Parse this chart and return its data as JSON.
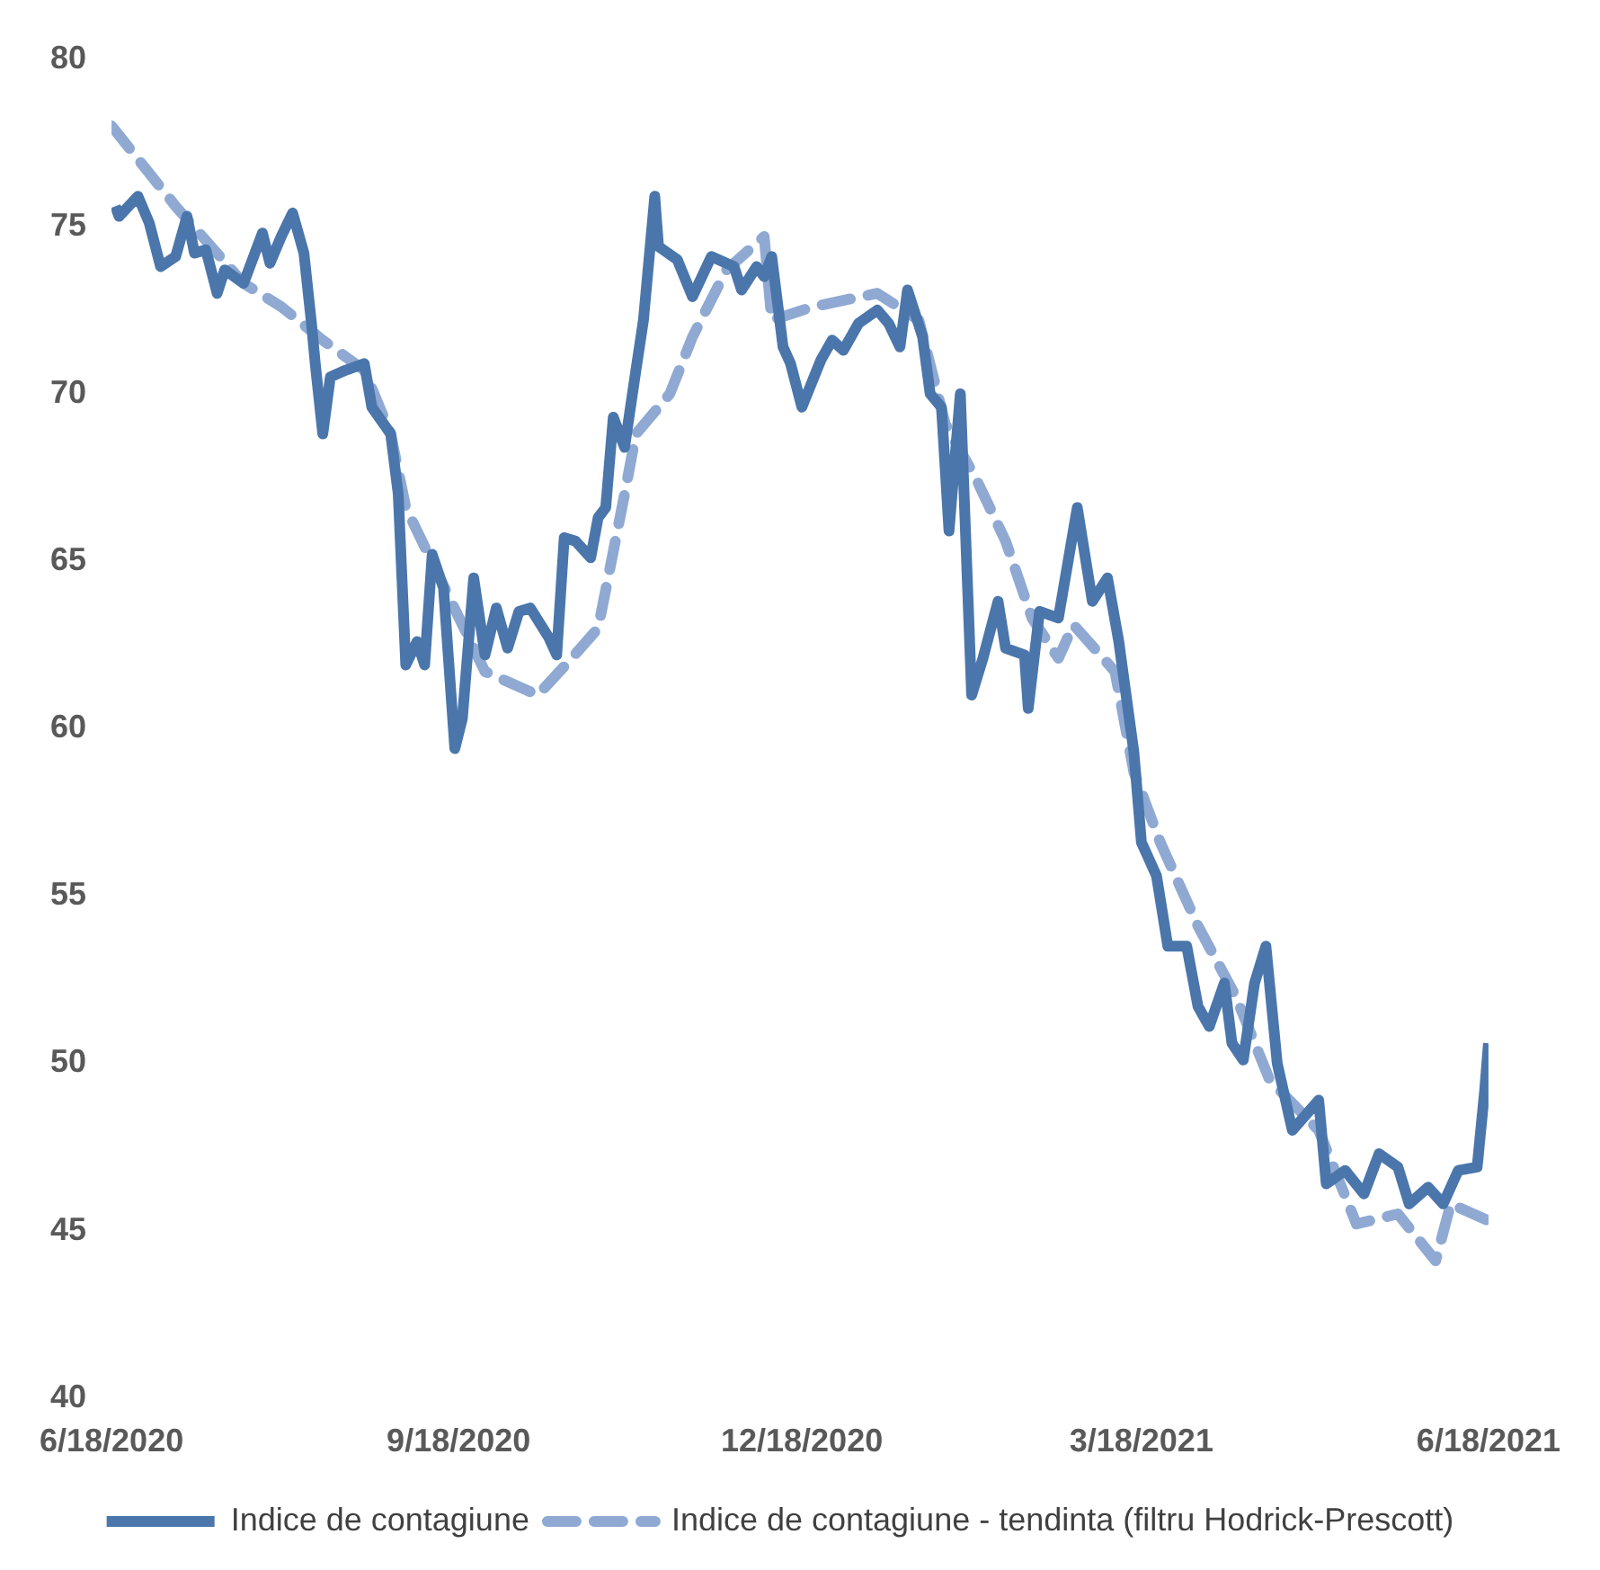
{
  "chart_data": {
    "type": "line",
    "xlim": [
      "2020-06-18",
      "2021-06-18"
    ],
    "xticks": [
      {
        "value": "2020-06-18",
        "label": "6/18/2020"
      },
      {
        "value": "2020-09-18",
        "label": "9/18/2020"
      },
      {
        "value": "2020-12-18",
        "label": "12/18/2020"
      },
      {
        "value": "2021-03-18",
        "label": "3/18/2021"
      },
      {
        "value": "2021-06-18",
        "label": "6/18/2021"
      }
    ],
    "ylim": [
      40,
      80
    ],
    "yticks": [
      40,
      45,
      50,
      55,
      60,
      65,
      70,
      75,
      80
    ],
    "grid": false,
    "legend": "bottom",
    "marker": "none",
    "series": [
      {
        "name": "Indice de contagiune",
        "color": "#4a76ab",
        "line_style": "solid",
        "x": [
          "2020-06-19",
          "2020-06-20",
          "2020-06-25",
          "2020-06-28",
          "2020-07-01",
          "2020-07-05",
          "2020-07-08",
          "2020-07-10",
          "2020-07-13",
          "2020-07-16",
          "2020-07-18",
          "2020-07-23",
          "2020-07-28",
          "2020-07-30",
          "2020-08-02",
          "2020-08-05",
          "2020-08-08",
          "2020-08-10",
          "2020-08-11",
          "2020-08-13",
          "2020-08-15",
          "2020-08-19",
          "2020-08-24",
          "2020-08-26",
          "2020-08-31",
          "2020-09-02",
          "2020-09-04",
          "2020-09-07",
          "2020-09-09",
          "2020-09-11",
          "2020-09-14",
          "2020-09-17",
          "2020-09-19",
          "2020-09-22",
          "2020-09-25",
          "2020-09-28",
          "2020-10-01",
          "2020-10-04",
          "2020-10-07",
          "2020-10-12",
          "2020-10-14",
          "2020-10-16",
          "2020-10-19",
          "2020-10-23",
          "2020-10-25",
          "2020-10-27",
          "2020-10-29",
          "2020-11-01",
          "2020-11-04",
          "2020-11-06",
          "2020-11-09",
          "2020-11-10",
          "2020-11-15",
          "2020-11-19",
          "2020-11-24",
          "2020-11-30",
          "2020-12-02",
          "2020-12-06",
          "2020-12-08",
          "2020-12-10",
          "2020-12-13",
          "2020-12-15",
          "2020-12-18",
          "2020-12-23",
          "2020-12-26",
          "2020-12-29",
          "2021-01-02",
          "2021-01-07",
          "2021-01-10",
          "2021-01-13",
          "2021-01-15",
          "2021-01-19",
          "2021-01-21",
          "2021-01-24",
          "2021-01-26",
          "2021-01-29",
          "2021-02-01",
          "2021-02-04",
          "2021-02-08",
          "2021-02-10",
          "2021-02-15",
          "2021-02-16",
          "2021-02-19",
          "2021-02-24",
          "2021-03-01",
          "2021-03-05",
          "2021-03-09",
          "2021-03-12",
          "2021-03-16",
          "2021-03-18",
          "2021-03-22",
          "2021-03-25",
          "2021-03-30",
          "2021-04-02",
          "2021-04-05",
          "2021-04-09",
          "2021-04-11",
          "2021-04-14",
          "2021-04-17",
          "2021-04-20",
          "2021-04-23",
          "2021-04-27",
          "2021-05-04",
          "2021-05-06",
          "2021-05-11",
          "2021-05-16",
          "2021-05-20",
          "2021-05-25",
          "2021-05-28",
          "2021-06-02",
          "2021-06-06",
          "2021-06-10",
          "2021-06-15",
          "2021-06-17",
          "2021-06-18"
        ],
        "values": [
          75.6,
          75.3,
          75.9,
          75.1,
          73.8,
          74.1,
          75.3,
          74.2,
          74.3,
          73.0,
          73.7,
          73.3,
          74.8,
          73.9,
          74.7,
          75.4,
          74.2,
          72.1,
          70.9,
          68.8,
          70.5,
          70.7,
          70.9,
          69.6,
          68.8,
          67.0,
          61.9,
          62.6,
          61.9,
          65.2,
          64.2,
          59.4,
          60.3,
          64.5,
          62.2,
          63.6,
          62.4,
          63.5,
          63.6,
          62.7,
          62.2,
          65.7,
          65.6,
          65.1,
          66.3,
          66.6,
          69.3,
          68.4,
          70.7,
          72.2,
          75.9,
          74.4,
          74.0,
          72.9,
          74.1,
          73.8,
          73.1,
          73.8,
          73.5,
          74.1,
          71.4,
          70.9,
          69.6,
          71.0,
          71.6,
          71.3,
          72.1,
          72.5,
          72.1,
          71.4,
          73.1,
          71.7,
          70.0,
          69.6,
          65.9,
          70.0,
          61.0,
          62.1,
          63.8,
          62.4,
          62.2,
          60.6,
          63.5,
          63.3,
          66.6,
          63.8,
          64.5,
          62.6,
          59.3,
          56.6,
          55.6,
          53.5,
          53.5,
          51.7,
          51.1,
          52.4,
          50.6,
          50.1,
          52.4,
          53.5,
          50.0,
          48.0,
          48.9,
          46.4,
          46.8,
          46.1,
          47.3,
          46.9,
          45.8,
          46.3,
          45.8,
          46.8,
          46.9,
          49.2,
          50.6
        ]
      },
      {
        "name": "Indice de contagiune - tendinta (filtru Hodrick-Prescott)",
        "color": "#8fa9d3",
        "line_style": "dashed",
        "x": [
          "2020-06-18",
          "2020-07-05",
          "2020-07-23",
          "2020-08-02",
          "2020-08-13",
          "2020-08-24",
          "2020-08-31",
          "2020-09-04",
          "2020-09-13",
          "2020-09-25",
          "2020-10-09",
          "2020-10-18",
          "2020-10-25",
          "2020-11-01",
          "2020-11-04",
          "2020-11-13",
          "2020-11-19",
          "2020-11-28",
          "2020-12-08",
          "2020-12-10",
          "2020-12-21",
          "2021-01-07",
          "2021-01-18",
          "2021-01-25",
          "2021-02-02",
          "2021-02-10",
          "2021-02-17",
          "2021-02-24",
          "2021-02-28",
          "2021-03-11",
          "2021-03-16",
          "2021-03-23",
          "2021-04-02",
          "2021-04-12",
          "2021-04-21",
          "2021-05-04",
          "2021-05-14",
          "2021-05-25",
          "2021-06-04",
          "2021-06-08",
          "2021-06-18"
        ],
        "values": [
          78.0,
          75.6,
          73.3,
          72.6,
          71.6,
          70.7,
          68.8,
          66.6,
          64.5,
          61.7,
          61.0,
          62.1,
          63.0,
          67.0,
          68.8,
          70.0,
          71.7,
          73.7,
          74.7,
          72.2,
          72.6,
          73.0,
          72.2,
          69.1,
          67.5,
          65.6,
          63.3,
          62.1,
          63.1,
          61.7,
          58.7,
          56.6,
          54.1,
          52.0,
          49.5,
          48.0,
          45.2,
          45.5,
          44.1,
          45.8,
          45.3
        ]
      }
    ]
  }
}
